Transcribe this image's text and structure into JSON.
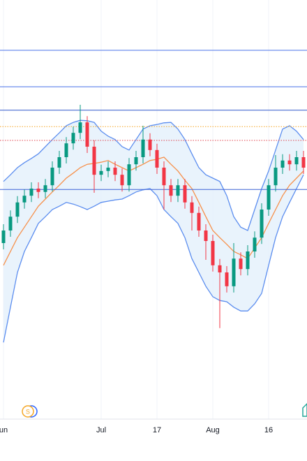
{
  "chart_data": {
    "type": "candlestick",
    "categories": [
      "un",
      null,
      null,
      null,
      null,
      null,
      null,
      null,
      null,
      null,
      null,
      null,
      null,
      null,
      "Jul",
      null,
      null,
      null,
      null,
      null,
      null,
      null,
      "17",
      null,
      null,
      null,
      null,
      null,
      null,
      null,
      "Aug",
      null,
      null,
      null,
      null,
      null,
      null,
      null,
      "16",
      null,
      null,
      null,
      null,
      null
    ],
    "ylim": [
      0,
      100
    ],
    "up_color": "#089981",
    "down_color": "#f23645",
    "open": [
      42,
      45,
      48.3,
      51.7,
      53.3,
      55,
      54.2,
      55.8,
      60,
      62.5,
      65.8,
      68.3,
      70.8,
      65,
      58.3,
      59.2,
      60,
      58.3,
      55.8,
      60.8,
      62.5,
      66.7,
      64.2,
      60,
      55.8,
      53.3,
      55.8,
      51.7,
      49.2,
      45,
      42.5,
      36.7,
      35,
      31.7,
      38.3,
      35.8,
      40,
      43.3,
      50,
      55.8,
      60,
      61.7,
      60.8,
      62.5
    ],
    "high": [
      46.5,
      49.8,
      53.2,
      54.8,
      56.5,
      56.5,
      57.3,
      61.5,
      64,
      67.3,
      69.8,
      75,
      72.3,
      66.5,
      60.7,
      61.5,
      61.5,
      59.8,
      62.3,
      64,
      70,
      68.2,
      65.7,
      61.5,
      57.3,
      57.3,
      57.3,
      53.2,
      50.7,
      46.5,
      44,
      38.2,
      36.5,
      42,
      39.8,
      41.5,
      44.8,
      51.5,
      57.3,
      63,
      63.2,
      63.2,
      64,
      64
    ],
    "low": [
      40.5,
      43.5,
      46.8,
      50.2,
      51.8,
      52.7,
      52.7,
      54.3,
      58.5,
      61,
      64.3,
      66.8,
      63.5,
      54,
      56.8,
      57.7,
      56.8,
      54.3,
      54.3,
      59.3,
      61,
      62.7,
      58.5,
      50,
      51.8,
      51.8,
      50.2,
      45,
      43.5,
      38,
      35.2,
      21.7,
      30.2,
      30.2,
      34.3,
      34.3,
      38.5,
      41.8,
      48.5,
      54.3,
      58.5,
      59.3,
      59.3,
      58.5
    ],
    "close": [
      45,
      48.3,
      51.7,
      53.3,
      55,
      54.2,
      55.8,
      60,
      62.5,
      65.8,
      68.3,
      70.8,
      65,
      58.3,
      59.2,
      60,
      58.3,
      55.8,
      60.8,
      62.5,
      66.7,
      64.2,
      60,
      55.8,
      53.3,
      55.8,
      51.7,
      49.2,
      45,
      42.5,
      36.7,
      35,
      31.7,
      38.3,
      35.8,
      40,
      43.3,
      50,
      55.8,
      60,
      61.7,
      60.8,
      62.5,
      60
    ],
    "band_fill": "#e3f0fb",
    "bands": [
      {
        "color": "#5b8def",
        "values": [
          56.7,
          58.3,
          60,
          61.2,
          62.2,
          63.3,
          65,
          66.7,
          68.3,
          70,
          70.8,
          71.3,
          71.2,
          70.8,
          68.7,
          67.5,
          66.7,
          65,
          64.2,
          66.7,
          69.2,
          70,
          70.3,
          70.7,
          70.8,
          69.2,
          66.7,
          63.3,
          60,
          58.3,
          57.5,
          56.7,
          53.3,
          48.3,
          45.8,
          45,
          50,
          55,
          59.2,
          64.2,
          69.2,
          70,
          68.7,
          66.7
        ]
      },
      {
        "color": "#f7904a",
        "values": [
          36.7,
          40,
          43.3,
          45.8,
          48.3,
          50.8,
          52.5,
          54.2,
          55.8,
          57.5,
          58.7,
          60,
          60.8,
          61,
          61.3,
          61.7,
          60.8,
          60,
          59.2,
          60,
          60.8,
          61.7,
          62,
          62.5,
          60.8,
          59.2,
          57,
          55,
          51.7,
          48.3,
          45,
          43.3,
          41.7,
          40,
          39.2,
          38.3,
          40.8,
          43.3,
          46.7,
          50,
          53.3,
          55.8,
          57.5,
          59.2
        ]
      },
      {
        "color": "#5b8def",
        "values": [
          18.3,
          26.7,
          35,
          40,
          43.3,
          46.7,
          48.3,
          50,
          50.8,
          51.7,
          51.3,
          50.7,
          50,
          50.8,
          51.7,
          52,
          52.3,
          52.5,
          53.3,
          54.2,
          54.7,
          55,
          53.3,
          50,
          48.3,
          46.7,
          43.3,
          38.3,
          35,
          31.7,
          29.2,
          28.3,
          28,
          26.7,
          25.8,
          25.8,
          27.5,
          30,
          36.7,
          43.3,
          48.3,
          51.7,
          55,
          58.3
        ]
      }
    ],
    "levels": [
      {
        "value": 88,
        "color": "#4a72e8",
        "style": "solid"
      },
      {
        "value": 79.3,
        "color": "#4a72e8",
        "style": "solid"
      },
      {
        "value": 73.7,
        "color": "#2f55c9",
        "style": "solid"
      },
      {
        "value": 69.8,
        "color": "#f5a623",
        "style": "dotted"
      },
      {
        "value": 66.5,
        "color": "#e0424b",
        "style": "dotted"
      },
      {
        "value": 54.8,
        "color": "#3d63d6",
        "style": "solid"
      }
    ],
    "event_badge": "S"
  }
}
